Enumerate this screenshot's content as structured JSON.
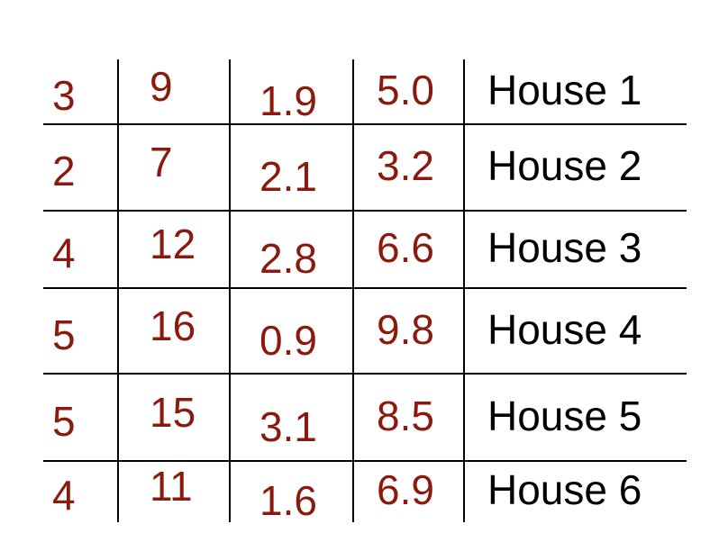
{
  "chart_data": {
    "type": "table",
    "label_color": "#000000",
    "value_color": "#8b1a0e",
    "rows": [
      {
        "label": "House 1",
        "values": [
          "3",
          "9",
          "1.9",
          "5.0"
        ]
      },
      {
        "label": "House 2",
        "values": [
          "2",
          "7",
          "2.1",
          "3.2"
        ]
      },
      {
        "label": "House 3",
        "values": [
          "4",
          "12",
          "2.8",
          "6.6"
        ]
      },
      {
        "label": "House 4",
        "values": [
          "5",
          "16",
          "0.9",
          "9.8"
        ]
      },
      {
        "label": "House 5",
        "values": [
          "5",
          "15",
          "3.1",
          "8.5"
        ]
      },
      {
        "label": "House 6",
        "values": [
          "4",
          "11",
          "1.6",
          "6.9"
        ]
      }
    ]
  }
}
